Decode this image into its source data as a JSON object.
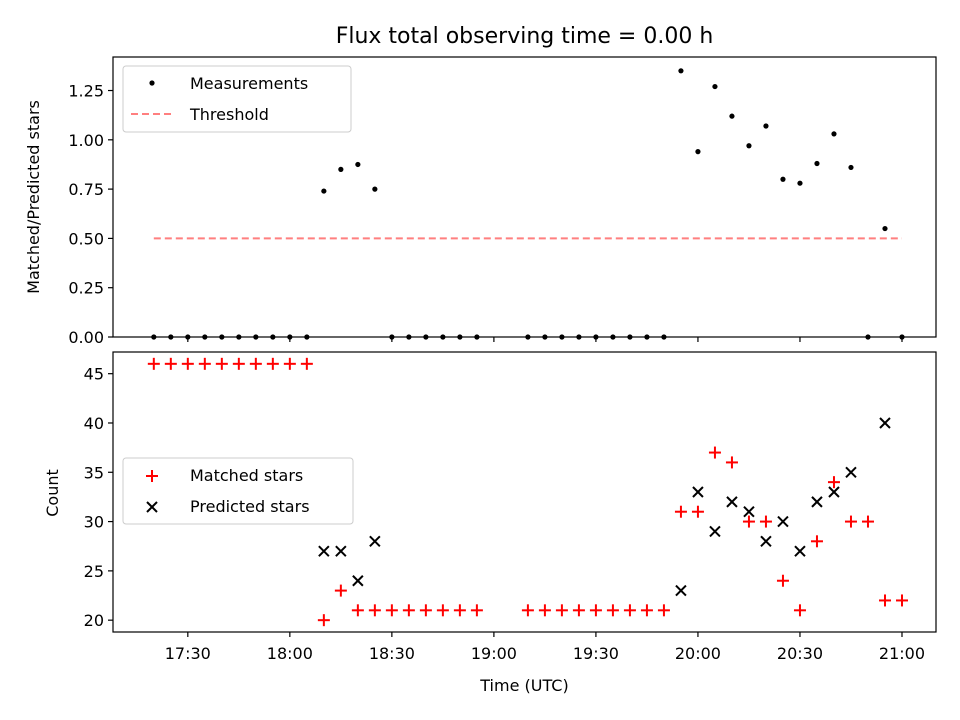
{
  "chart_data": [
    {
      "type": "scatter",
      "title": "Flux total observing time = 0.00 h",
      "xlabel": "",
      "ylabel": "Matched/Predicted stars",
      "ylim": [
        0.0,
        1.42
      ],
      "yticks": [
        0.0,
        0.25,
        0.5,
        0.75,
        1.0,
        1.25
      ],
      "ytick_labels": [
        "0.00",
        "0.25",
        "0.50",
        "0.75",
        "1.00",
        "1.25"
      ],
      "legend_position": "top-left",
      "series": [
        {
          "name": "Measurements",
          "marker": "dot",
          "color": "#000000",
          "x": [
            "17:20",
            "17:25",
            "17:30",
            "17:35",
            "17:40",
            "17:45",
            "17:50",
            "17:55",
            "18:00",
            "18:05",
            "18:10",
            "18:15",
            "18:20",
            "18:25",
            "18:30",
            "18:35",
            "18:40",
            "18:45",
            "18:50",
            "18:55",
            "19:10",
            "19:15",
            "19:20",
            "19:25",
            "19:30",
            "19:35",
            "19:40",
            "19:45",
            "19:50",
            "19:55",
            "20:00",
            "20:05",
            "20:10",
            "20:15",
            "20:20",
            "20:25",
            "20:30",
            "20:35",
            "20:40",
            "20:45",
            "20:50",
            "20:55",
            "21:00"
          ],
          "values": [
            0,
            0,
            0,
            0,
            0,
            0,
            0,
            0,
            0,
            0,
            0.74,
            0.85,
            0.875,
            0.75,
            0,
            0,
            0,
            0,
            0,
            0,
            0,
            0,
            0,
            0,
            0,
            0,
            0,
            0,
            0,
            1.35,
            0.94,
            1.27,
            1.12,
            0.97,
            1.07,
            0.8,
            0.78,
            0.88,
            1.03,
            0.86,
            0,
            0.55,
            0
          ]
        },
        {
          "name": "Threshold",
          "style": "dashed",
          "color": "#ff7f7f",
          "x": [
            "17:20",
            "21:00"
          ],
          "values": [
            0.5,
            0.5
          ]
        }
      ]
    },
    {
      "type": "scatter",
      "title": "",
      "xlabel": "Time (UTC)",
      "ylabel": "Count",
      "ylim": [
        18.8,
        47.2
      ],
      "yticks": [
        20,
        25,
        30,
        35,
        40,
        45
      ],
      "ytick_labels": [
        "20",
        "25",
        "30",
        "35",
        "40",
        "45"
      ],
      "xlim": [
        "17:08",
        "21:10"
      ],
      "xticks": [
        "17:30",
        "18:00",
        "18:30",
        "19:00",
        "19:30",
        "20:00",
        "20:30",
        "21:00"
      ],
      "legend_position": "center-left",
      "series": [
        {
          "name": "Matched stars",
          "marker": "plus",
          "color": "#ff0000",
          "x": [
            "17:20",
            "17:25",
            "17:30",
            "17:35",
            "17:40",
            "17:45",
            "17:50",
            "17:55",
            "18:00",
            "18:05",
            "18:10",
            "18:15",
            "18:20",
            "18:25",
            "18:30",
            "18:35",
            "18:40",
            "18:45",
            "18:50",
            "18:55",
            "19:10",
            "19:15",
            "19:20",
            "19:25",
            "19:30",
            "19:35",
            "19:40",
            "19:45",
            "19:50",
            "19:55",
            "20:00",
            "20:05",
            "20:10",
            "20:15",
            "20:20",
            "20:25",
            "20:30",
            "20:35",
            "20:40",
            "20:45",
            "20:50",
            "20:55",
            "21:00"
          ],
          "values": [
            46,
            46,
            46,
            46,
            46,
            46,
            46,
            46,
            46,
            46,
            20,
            23,
            21,
            21,
            21,
            21,
            21,
            21,
            21,
            21,
            21,
            21,
            21,
            21,
            21,
            21,
            21,
            21,
            21,
            31,
            31,
            37,
            36,
            30,
            30,
            24,
            21,
            28,
            34,
            30,
            30,
            22,
            22
          ]
        },
        {
          "name": "Predicted stars",
          "marker": "x",
          "color": "#000000",
          "x": [
            "18:10",
            "18:15",
            "18:20",
            "18:25",
            "19:55",
            "20:00",
            "20:05",
            "20:10",
            "20:15",
            "20:20",
            "20:25",
            "20:30",
            "20:35",
            "20:40",
            "20:45",
            "20:55"
          ],
          "values": [
            27,
            27,
            24,
            28,
            23,
            33,
            29,
            32,
            31,
            28,
            30,
            27,
            32,
            33,
            35,
            40
          ]
        }
      ]
    }
  ]
}
